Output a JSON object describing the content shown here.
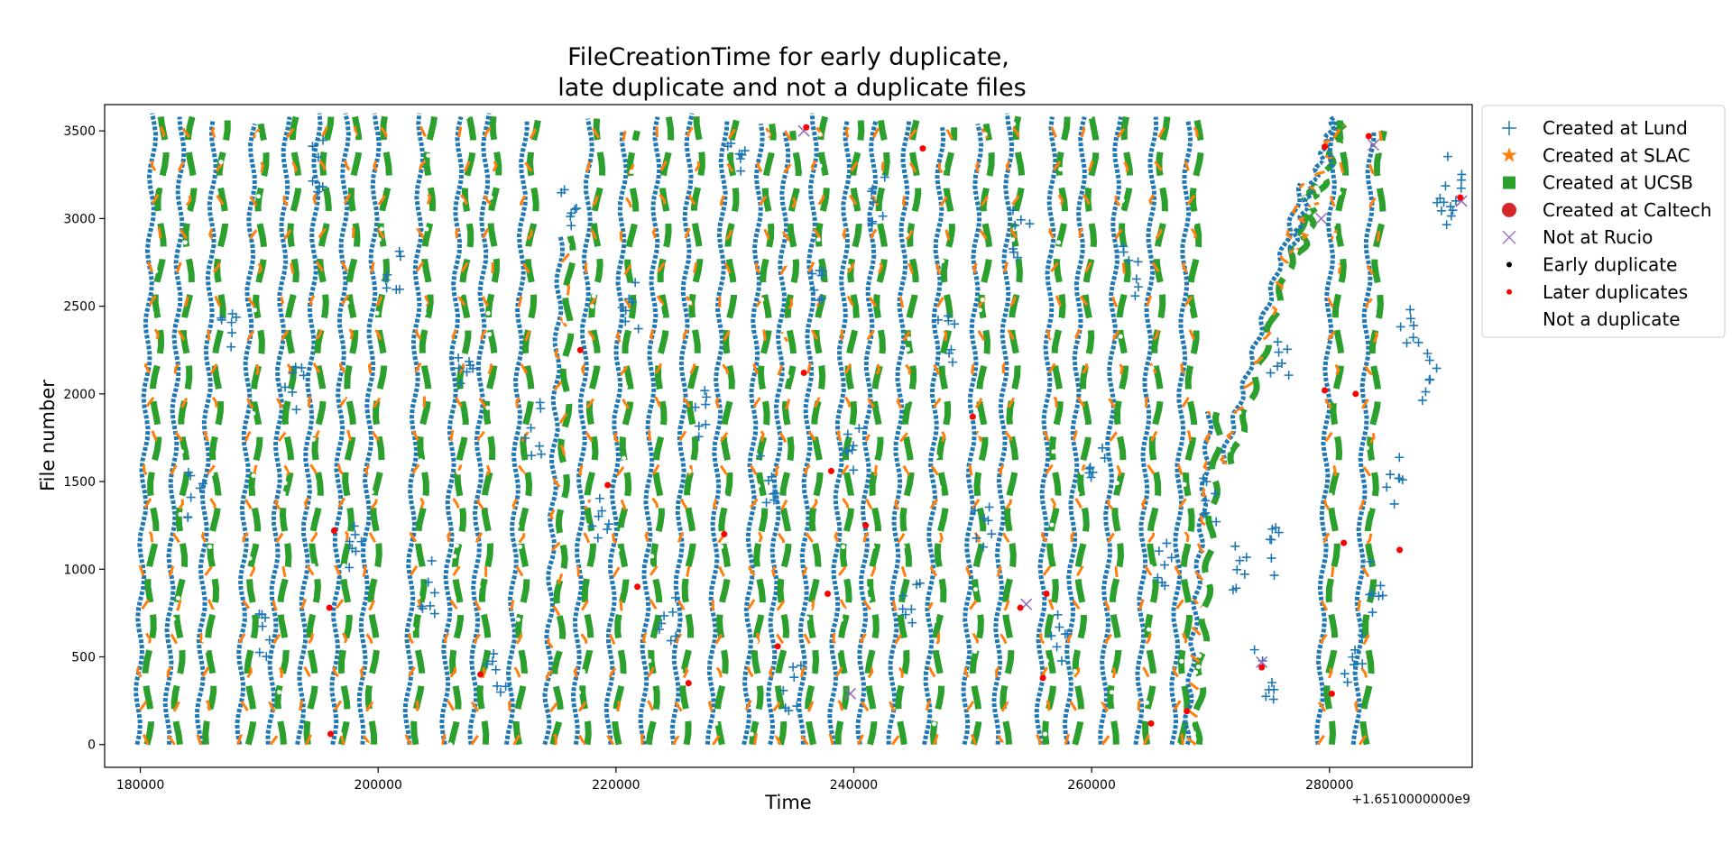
{
  "chart_data": {
    "type": "scatter",
    "title_line1": "FileCreationTime for early duplicate,",
    "title_line2": "late duplicate and not a duplicate files",
    "xlabel": "Time",
    "ylabel": "File number",
    "offset_label": "+1.6510000000e9",
    "xlim": [
      177000,
      292000
    ],
    "ylim": [
      -130,
      3650
    ],
    "x_ticks": [
      180000,
      200000,
      220000,
      240000,
      260000,
      280000
    ],
    "x_tick_labels": [
      "180000",
      "200000",
      "220000",
      "240000",
      "260000",
      "280000"
    ],
    "y_ticks": [
      0,
      500,
      1000,
      1500,
      2000,
      2500,
      3000,
      3500
    ],
    "y_tick_labels": [
      "0",
      "500",
      "1000",
      "1500",
      "2000",
      "2500",
      "3000",
      "3500"
    ],
    "grid": false,
    "legend_position": "outside-right",
    "legend": [
      {
        "label": "Created at Lund",
        "marker": "plus",
        "color": "#1f77b4"
      },
      {
        "label": "Created at SLAC",
        "marker": "star",
        "color": "#ff7f0e"
      },
      {
        "label": "Created at UCSB",
        "marker": "square",
        "color": "#2ca02c"
      },
      {
        "label": "Created at Caltech",
        "marker": "circle",
        "color": "#d62728"
      },
      {
        "label": "Not at Rucio",
        "marker": "x",
        "color": "#9467bd"
      },
      {
        "label": "Early duplicate",
        "marker": "dot",
        "color": "#000000"
      },
      {
        "label": "Later duplicates",
        "marker": "dot",
        "color": "#ff0000"
      },
      {
        "label": "Not a duplicate",
        "marker": "dot",
        "color": "#ffffff"
      }
    ],
    "bands": [
      {
        "x_start": 179800,
        "x_end": 181200,
        "y_start": 0,
        "y_end": 3600
      },
      {
        "x_start": 182300,
        "x_end": 183600,
        "y_start": 0,
        "y_end": 3580
      },
      {
        "x_start": 185000,
        "x_end": 186300,
        "y_start": 0,
        "y_end": 3560
      },
      {
        "x_start": 188400,
        "x_end": 189600,
        "y_start": 0,
        "y_end": 3540
      },
      {
        "x_start": 191000,
        "x_end": 192400,
        "y_start": 0,
        "y_end": 3580
      },
      {
        "x_start": 193500,
        "x_end": 195000,
        "y_start": 0,
        "y_end": 3600
      },
      {
        "x_start": 196300,
        "x_end": 197400,
        "y_start": 0,
        "y_end": 3600
      },
      {
        "x_start": 198600,
        "x_end": 200000,
        "y_start": 0,
        "y_end": 3600
      },
      {
        "x_start": 202500,
        "x_end": 203700,
        "y_start": 0,
        "y_end": 3600
      },
      {
        "x_start": 205600,
        "x_end": 207000,
        "y_start": 0,
        "y_end": 3580
      },
      {
        "x_start": 208000,
        "x_end": 209200,
        "y_start": 0,
        "y_end": 3600
      },
      {
        "x_start": 211100,
        "x_end": 212400,
        "y_start": 0,
        "y_end": 3560
      },
      {
        "x_start": 214200,
        "x_end": 215400,
        "y_start": 0,
        "y_end": 2900
      },
      {
        "x_start": 216600,
        "x_end": 217900,
        "y_start": 0,
        "y_end": 3570
      },
      {
        "x_start": 219400,
        "x_end": 220800,
        "y_start": 0,
        "y_end": 3500
      },
      {
        "x_start": 222300,
        "x_end": 223600,
        "y_start": 0,
        "y_end": 3580
      },
      {
        "x_start": 225000,
        "x_end": 226300,
        "y_start": 0,
        "y_end": 3600
      },
      {
        "x_start": 228000,
        "x_end": 229200,
        "y_start": 0,
        "y_end": 3560
      },
      {
        "x_start": 231000,
        "x_end": 232200,
        "y_start": 0,
        "y_end": 3540
      },
      {
        "x_start": 233000,
        "x_end": 234400,
        "y_start": 0,
        "y_end": 3500
      },
      {
        "x_start": 235600,
        "x_end": 236800,
        "y_start": 0,
        "y_end": 3600
      },
      {
        "x_start": 238200,
        "x_end": 239600,
        "y_start": 0,
        "y_end": 3560
      },
      {
        "x_start": 240600,
        "x_end": 241800,
        "y_start": 0,
        "y_end": 3560
      },
      {
        "x_start": 243200,
        "x_end": 244500,
        "y_start": 0,
        "y_end": 3560
      },
      {
        "x_start": 246200,
        "x_end": 247400,
        "y_start": 0,
        "y_end": 3520
      },
      {
        "x_start": 249400,
        "x_end": 250600,
        "y_start": 0,
        "y_end": 3540
      },
      {
        "x_start": 252000,
        "x_end": 253200,
        "y_start": 0,
        "y_end": 3600
      },
      {
        "x_start": 255600,
        "x_end": 256900,
        "y_start": 0,
        "y_end": 3580
      },
      {
        "x_start": 258000,
        "x_end": 259400,
        "y_start": 0,
        "y_end": 3580
      },
      {
        "x_start": 261000,
        "x_end": 262300,
        "y_start": 0,
        "y_end": 3580
      },
      {
        "x_start": 264000,
        "x_end": 265300,
        "y_start": 0,
        "y_end": 3580
      },
      {
        "x_start": 266900,
        "x_end": 268200,
        "y_start": 0,
        "y_end": 3560
      },
      {
        "x_start": 268000,
        "x_end": 270000,
        "y_start": 0,
        "y_end": 1900
      },
      {
        "x_start": 271000,
        "x_end": 277800,
        "y_start": 1600,
        "y_end": 3200
      },
      {
        "x_start": 276800,
        "x_end": 280500,
        "y_start": 2800,
        "y_end": 3580
      },
      {
        "x_start": 279200,
        "x_end": 280400,
        "y_start": 0,
        "y_end": 3560
      },
      {
        "x_start": 282300,
        "x_end": 283600,
        "y_start": 0,
        "y_end": 3500
      }
    ],
    "lund_clusters": [
      {
        "x": 184600,
        "y": 1400
      },
      {
        "x": 187300,
        "y": 2400
      },
      {
        "x": 190100,
        "y": 600
      },
      {
        "x": 193000,
        "y": 2000
      },
      {
        "x": 195200,
        "y": 3300
      },
      {
        "x": 197900,
        "y": 1100
      },
      {
        "x": 201300,
        "y": 2700
      },
      {
        "x": 204100,
        "y": 900
      },
      {
        "x": 207300,
        "y": 2100
      },
      {
        "x": 210000,
        "y": 400
      },
      {
        "x": 212900,
        "y": 1800
      },
      {
        "x": 215900,
        "y": 3100
      },
      {
        "x": 218600,
        "y": 1300
      },
      {
        "x": 221200,
        "y": 2500
      },
      {
        "x": 224300,
        "y": 700
      },
      {
        "x": 226900,
        "y": 1900
      },
      {
        "x": 230100,
        "y": 3300
      },
      {
        "x": 232600,
        "y": 1500
      },
      {
        "x": 234900,
        "y": 300
      },
      {
        "x": 237300,
        "y": 2600
      },
      {
        "x": 239800,
        "y": 1700
      },
      {
        "x": 242300,
        "y": 3100
      },
      {
        "x": 244900,
        "y": 800
      },
      {
        "x": 247900,
        "y": 2300
      },
      {
        "x": 251000,
        "y": 1200
      },
      {
        "x": 254100,
        "y": 2900
      },
      {
        "x": 257200,
        "y": 600
      },
      {
        "x": 260300,
        "y": 1600
      },
      {
        "x": 263200,
        "y": 2700
      },
      {
        "x": 266000,
        "y": 1000
      },
      {
        "x": 270200,
        "y": 1400
      },
      {
        "x": 272600,
        "y": 1000
      },
      {
        "x": 274500,
        "y": 400
      },
      {
        "x": 275000,
        "y": 1100
      },
      {
        "x": 275800,
        "y": 2200
      },
      {
        "x": 282000,
        "y": 500
      },
      {
        "x": 284100,
        "y": 900
      },
      {
        "x": 285600,
        "y": 1500
      },
      {
        "x": 286800,
        "y": 2400
      },
      {
        "x": 288300,
        "y": 2100
      },
      {
        "x": 289700,
        "y": 3050
      },
      {
        "x": 290400,
        "y": 3200
      }
    ],
    "later_duplicates": [
      {
        "x": 195900,
        "y": 780
      },
      {
        "x": 196300,
        "y": 1220
      },
      {
        "x": 196000,
        "y": 60
      },
      {
        "x": 208600,
        "y": 400
      },
      {
        "x": 217000,
        "y": 2250
      },
      {
        "x": 219300,
        "y": 1480
      },
      {
        "x": 221800,
        "y": 900
      },
      {
        "x": 226100,
        "y": 350
      },
      {
        "x": 229100,
        "y": 1200
      },
      {
        "x": 233600,
        "y": 560
      },
      {
        "x": 235800,
        "y": 2120
      },
      {
        "x": 236000,
        "y": 3520
      },
      {
        "x": 237800,
        "y": 860
      },
      {
        "x": 238100,
        "y": 1560
      },
      {
        "x": 241000,
        "y": 1250
      },
      {
        "x": 245800,
        "y": 3400
      },
      {
        "x": 250000,
        "y": 1870
      },
      {
        "x": 254000,
        "y": 780
      },
      {
        "x": 255900,
        "y": 380
      },
      {
        "x": 256200,
        "y": 860
      },
      {
        "x": 265000,
        "y": 120
      },
      {
        "x": 268000,
        "y": 190
      },
      {
        "x": 274300,
        "y": 440
      },
      {
        "x": 279600,
        "y": 2020
      },
      {
        "x": 279600,
        "y": 3410
      },
      {
        "x": 280200,
        "y": 290
      },
      {
        "x": 281200,
        "y": 1150
      },
      {
        "x": 282200,
        "y": 2000
      },
      {
        "x": 283300,
        "y": 3470
      },
      {
        "x": 285900,
        "y": 1110
      },
      {
        "x": 291000,
        "y": 3120
      }
    ],
    "not_at_rucio": [
      {
        "x": 235800,
        "y": 3500
      },
      {
        "x": 239700,
        "y": 290
      },
      {
        "x": 254500,
        "y": 800
      },
      {
        "x": 274300,
        "y": 470
      },
      {
        "x": 279300,
        "y": 3000
      },
      {
        "x": 283700,
        "y": 3420
      },
      {
        "x": 291100,
        "y": 3100
      }
    ]
  }
}
